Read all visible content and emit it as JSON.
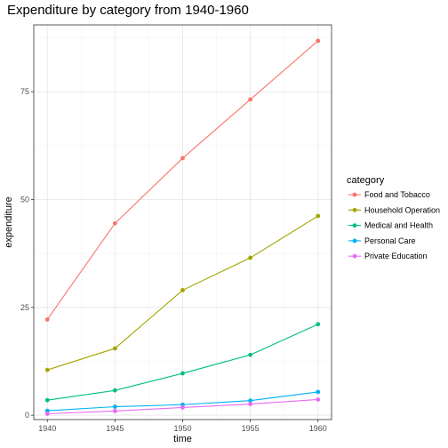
{
  "chart_data": {
    "type": "line",
    "title": "Expenditure by category from 1940-1960",
    "xlabel": "time",
    "ylabel": "expenditure",
    "x": [
      1940,
      1945,
      1950,
      1955,
      1960
    ],
    "xlim": [
      1939.0,
      1961.0
    ],
    "ylim": [
      -1.0,
      90.5
    ],
    "x_ticks": [
      1940,
      1945,
      1950,
      1955,
      1960
    ],
    "y_ticks": [
      0,
      25,
      50,
      75
    ],
    "grid": true,
    "legend": {
      "title": "category",
      "position": "right"
    },
    "series": [
      {
        "name": "Food and Tobacco",
        "color": "#F8766D",
        "values": [
          22.2,
          44.5,
          59.6,
          73.2,
          86.8
        ]
      },
      {
        "name": "Household Operation",
        "color": "#A3A500",
        "values": [
          10.5,
          15.5,
          29.0,
          36.5,
          46.2
        ]
      },
      {
        "name": "Medical and Health",
        "color": "#00BF7D",
        "values": [
          3.5,
          5.76,
          9.71,
          14.0,
          21.1
        ]
      },
      {
        "name": "Personal Care",
        "color": "#00B0F6",
        "values": [
          1.04,
          1.98,
          2.45,
          3.4,
          5.4
        ]
      },
      {
        "name": "Private Education",
        "color": "#E76BF3",
        "values": [
          0.341,
          0.974,
          1.8,
          2.6,
          3.64
        ]
      }
    ]
  }
}
